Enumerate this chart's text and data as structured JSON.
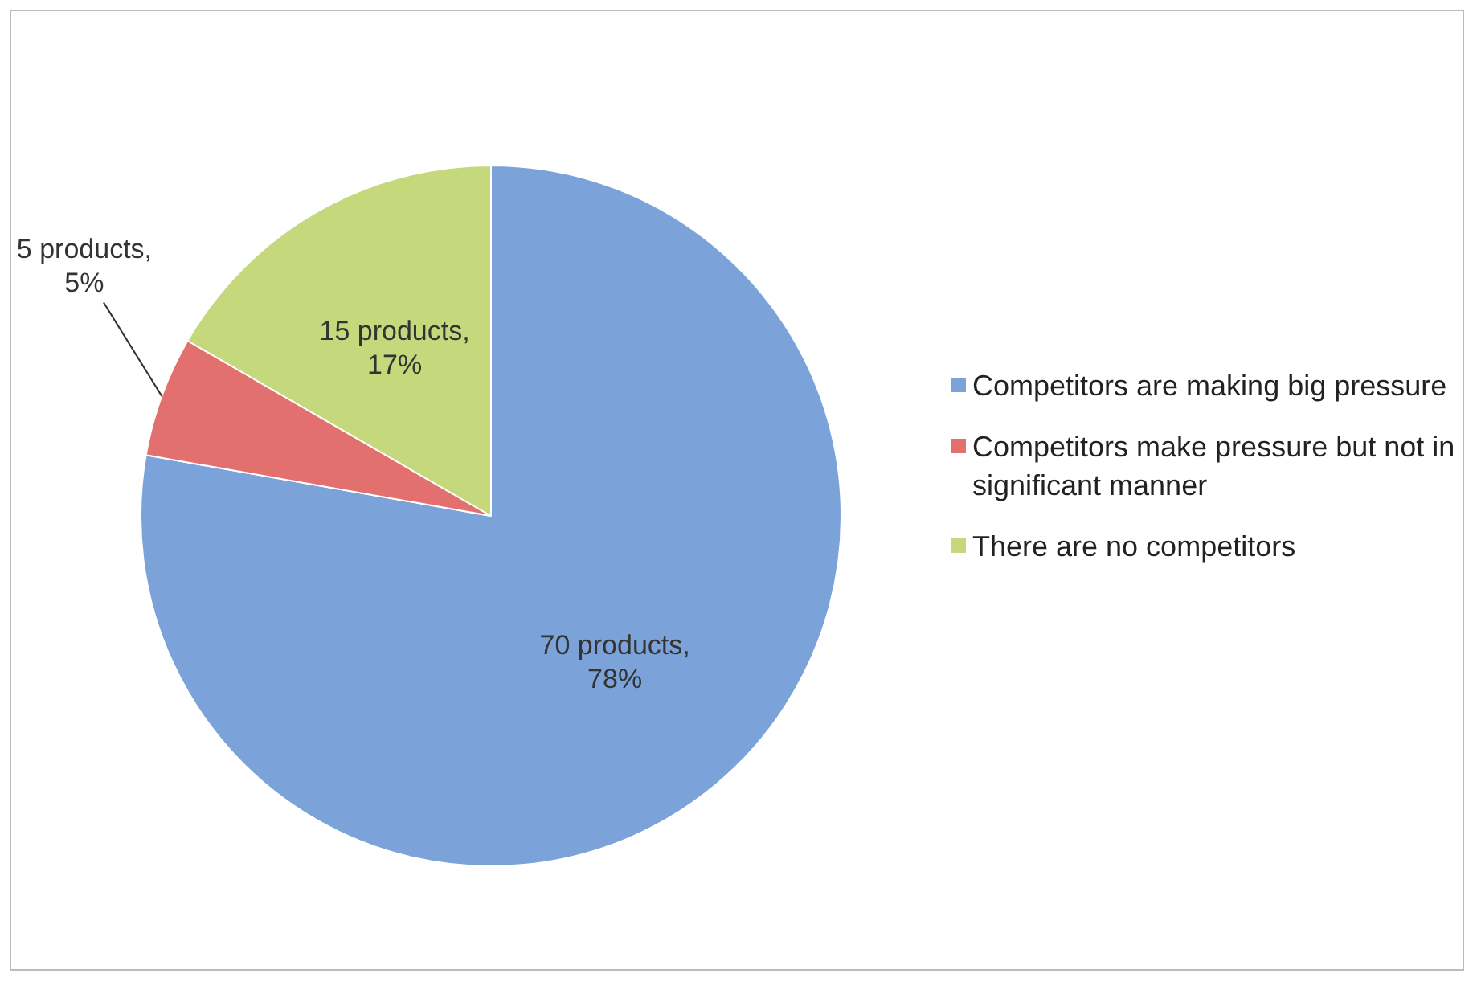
{
  "chart_data": {
    "type": "pie",
    "categories": [
      "Competitors are making big pressure",
      "Competitors make pressure but not in significant manner",
      "There are no competitors"
    ],
    "values": [
      70,
      5,
      15
    ],
    "colors": [
      "#7ba3d9",
      "#e2706e",
      "#c5d97c"
    ],
    "value_labels": [
      "70 products, 78%",
      "5 products, 5%",
      "15 products, 17%"
    ],
    "legend": "right"
  }
}
